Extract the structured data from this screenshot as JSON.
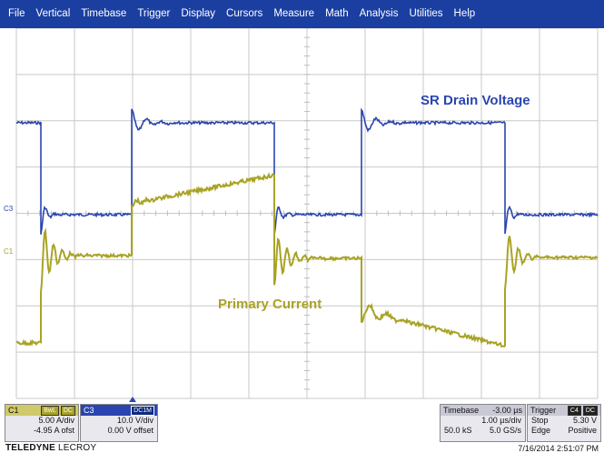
{
  "menu": [
    "File",
    "Vertical",
    "Timebase",
    "Trigger",
    "Display",
    "Cursors",
    "Measure",
    "Math",
    "Analysis",
    "Utilities",
    "Help"
  ],
  "markers": {
    "c3": "C3",
    "c1": "C1"
  },
  "labels": {
    "sr": "SR Drain Voltage",
    "primary": "Primary Current"
  },
  "colors": {
    "c3": "#2a45b0",
    "c1": "#a9a325",
    "menubar": "#1b3fa0"
  },
  "c1": {
    "name": "C1",
    "tag1": "BwL",
    "tag2": "DC",
    "vdiv": "5.00 A/div",
    "offset": "-4.95 A ofst"
  },
  "c3": {
    "name": "C3",
    "tag1": "DC1M",
    "vdiv": "10.0 V/div",
    "offset": "0.00 V offset"
  },
  "timebase": {
    "label": "Timebase",
    "delay": "-3.00 µs",
    "tdiv": "1.00 µs/div",
    "samples": "50.0 kS",
    "rate": "5.0 GS/s"
  },
  "trigger": {
    "label": "Trigger",
    "tag1": "C4",
    "tag2": "DC",
    "mode": "Stop",
    "level": "5.30 V",
    "type": "Edge",
    "slope": "Positive"
  },
  "brand": {
    "part1": "TELEDYNE",
    "part2": "LECROY"
  },
  "datetime": "7/16/2014 2:51:07 PM"
}
